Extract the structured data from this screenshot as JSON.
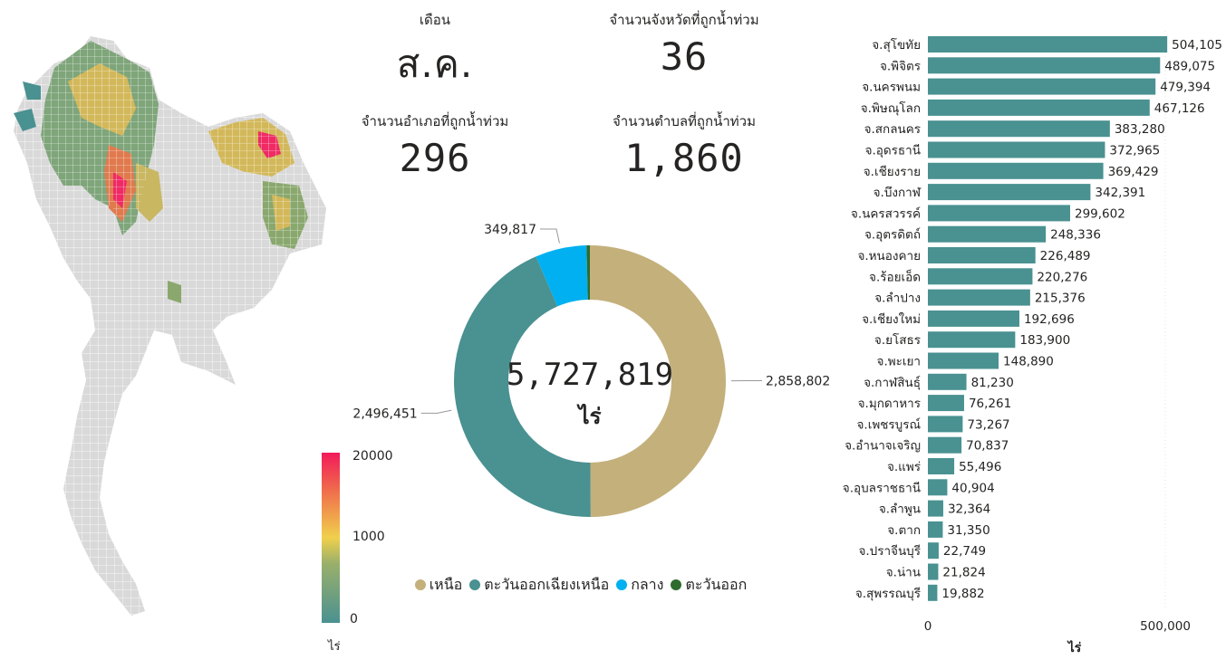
{
  "kpis": {
    "month_label": "เดือน",
    "month_value": "ส.ค.",
    "provinces_label": "จำนวนจังหวัดที่ถูกน้ำท่วม",
    "provinces_value": "36",
    "districts_label": "จำนวนอำเภอที่ถูกน้ำท่วม",
    "districts_value": "296",
    "subdistricts_label": "จำนวนตำบลที่ถูกน้ำท่วม",
    "subdistricts_value": "1,860"
  },
  "map_legend": {
    "max_label": "20000",
    "mid_label": "1000",
    "min_label": "0",
    "unit": "ไร่",
    "colors": [
      "#4a9191",
      "#f0d04c",
      "#f06c4c",
      "#f2195a"
    ]
  },
  "chart_data": [
    {
      "type": "pie",
      "donut": true,
      "total_label": "5,727,819",
      "total_unit": "ไร่",
      "slices": [
        {
          "name": "เหนือ",
          "value": 2858802,
          "label": "2,858,802",
          "color": "#c4b07b"
        },
        {
          "name": "ตะวันออกเฉียงเหนือ",
          "value": 2496451,
          "label": "2,496,451",
          "color": "#4a9191"
        },
        {
          "name": "กลาง",
          "value": 349817,
          "label": "349,817",
          "color": "#00b0f0"
        },
        {
          "name": "ตะวันออก",
          "value": 22749,
          "label": "",
          "color": "#2f6b2f"
        }
      ],
      "legend_position": "bottom"
    },
    {
      "type": "bar",
      "orientation": "horizontal",
      "color": "#4a9191",
      "categories": [
        "จ.สุโขทัย",
        "จ.พิจิตร",
        "จ.นครพนม",
        "จ.พิษณุโลก",
        "จ.สกลนคร",
        "จ.อุดรธานี",
        "จ.เชียงราย",
        "จ.บึงกาฬ",
        "จ.นครสวรรค์",
        "จ.อุตรดิตถ์",
        "จ.หนองคาย",
        "จ.ร้อยเอ็ด",
        "จ.ลำปาง",
        "จ.เชียงใหม่",
        "จ.ยโสธร",
        "จ.พะเยา",
        "จ.กาฬสินธุ์",
        "จ.มุกดาหาร",
        "จ.เพชรบูรณ์",
        "จ.อำนาจเจริญ",
        "จ.แพร่",
        "จ.อุบลราชธานี",
        "จ.ลำพูน",
        "จ.ตาก",
        "จ.ปราจีนบุรี",
        "จ.น่าน",
        "จ.สุพรรณบุรี"
      ],
      "values": [
        504105,
        489075,
        479394,
        467126,
        383280,
        372965,
        369429,
        342391,
        299602,
        248336,
        226489,
        220276,
        215376,
        192696,
        183900,
        148890,
        81230,
        76261,
        73267,
        70837,
        55496,
        40904,
        32364,
        31350,
        22749,
        21824,
        19882
      ],
      "value_labels": [
        "504,105",
        "489,075",
        "479,394",
        "467,126",
        "383,280",
        "372,965",
        "369,429",
        "342,391",
        "299,602",
        "248,336",
        "226,489",
        "220,276",
        "215,376",
        "192,696",
        "183,900",
        "148,890",
        "81,230",
        "76,261",
        "73,267",
        "70,837",
        "55,496",
        "40,904",
        "32,364",
        "31,350",
        "22,749",
        "21,824",
        "19,882"
      ],
      "xticks": [
        "0",
        "500,000"
      ],
      "xtick_values": [
        0,
        500000
      ],
      "xlabel": "ไร่",
      "xlim": [
        0,
        560000
      ]
    }
  ]
}
